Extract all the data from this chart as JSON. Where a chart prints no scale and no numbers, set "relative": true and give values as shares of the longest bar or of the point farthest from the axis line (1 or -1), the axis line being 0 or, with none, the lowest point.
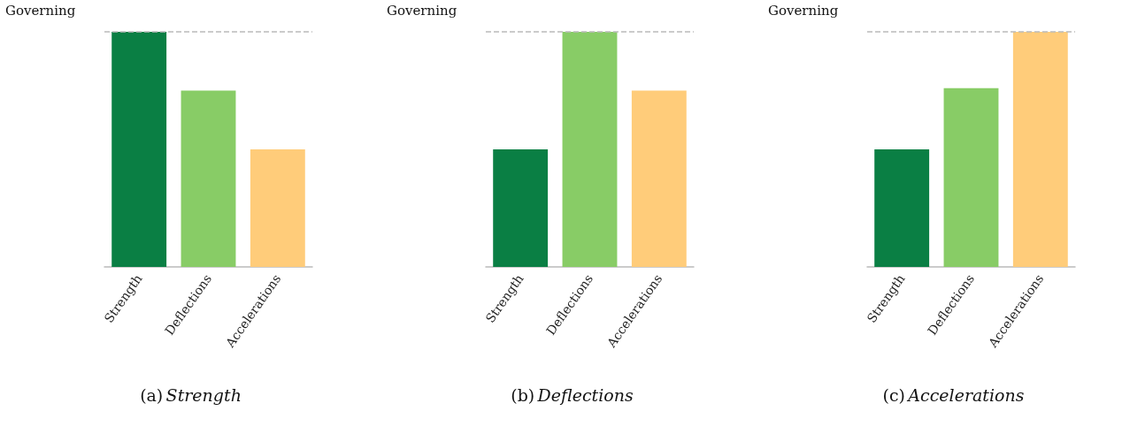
{
  "chart_data": [
    {
      "type": "bar",
      "relative": true,
      "categories": [
        "Strength",
        "Deflections",
        "Accelerations"
      ],
      "values": [
        1,
        0.75,
        0.5
      ],
      "colors": [
        "#0a7f44",
        "#88cc66",
        "#ffcc7a"
      ],
      "ref_lines": [
        {
          "axis": "y",
          "value": 1,
          "label": "Governing",
          "color": "#bbbbbb",
          "line_style": "dashed"
        }
      ],
      "annotations": [
        "(a) Strength"
      ]
    },
    {
      "type": "bar",
      "relative": true,
      "categories": [
        "Strength",
        "Deflections",
        "Accelerations"
      ],
      "values": [
        0.5,
        1,
        0.75
      ],
      "colors": [
        "#0a7f44",
        "#88cc66",
        "#ffcc7a"
      ],
      "ref_lines": [
        {
          "axis": "y",
          "value": 1,
          "label": "Governing",
          "color": "#bbbbbb",
          "line_style": "dashed"
        }
      ],
      "annotations": [
        "(b) Deflections"
      ]
    },
    {
      "type": "bar",
      "relative": true,
      "categories": [
        "Strength",
        "Deflections",
        "Accelerations"
      ],
      "values": [
        0.5,
        0.76,
        1
      ],
      "colors": [
        "#0a7f44",
        "#88cc66",
        "#ffcc7a"
      ],
      "ref_lines": [
        {
          "axis": "y",
          "value": 1,
          "label": "Governing",
          "color": "#bbbbbb",
          "line_style": "dashed"
        }
      ],
      "annotations": [
        "(c) Accelerations"
      ]
    }
  ]
}
